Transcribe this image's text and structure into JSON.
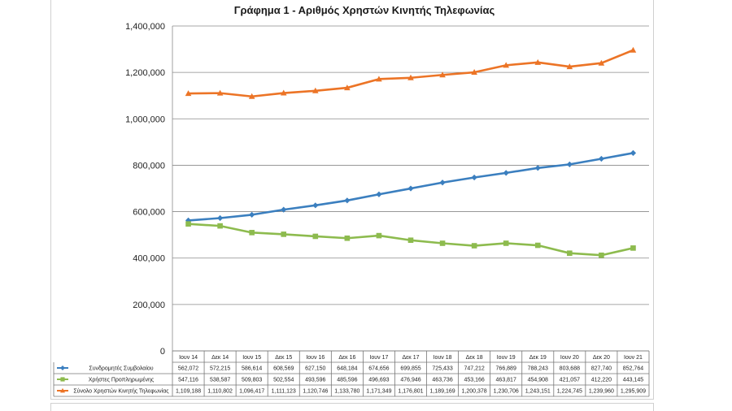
{
  "chart_data": {
    "type": "line",
    "title": "Γράφημα 1 - Αριθμός Χρηστών Κινητής Τηλεφωνίας",
    "categories": [
      "Ιουν 14",
      "Δεκ 14",
      "Ιουν 15",
      "Δεκ 15",
      "Ιουν 16",
      "Δεκ 16",
      "Ιουν 17",
      "Δεκ 17",
      "Ιουν 18",
      "Δεκ 18",
      "Ιουν 19",
      "Δεκ 19",
      "Ιουν 20",
      "Δεκ 20",
      "Ιουν 21"
    ],
    "ylim": [
      0,
      1400000
    ],
    "yticks": [
      "0",
      "200,000",
      "400,000",
      "600,000",
      "800,000",
      "1,000,000",
      "1,200,000",
      "1,400,000"
    ],
    "grid": true,
    "legend": "data-table",
    "series": [
      {
        "name": "Συνδρομητές Συμβολαίου",
        "color": "#3b7fbf",
        "marker": "diamond",
        "values": [
          562072,
          572215,
          586614,
          608569,
          627150,
          648184,
          674656,
          699855,
          725433,
          747212,
          766889,
          788243,
          803688,
          827740,
          852764
        ],
        "labels": [
          "562,072",
          "572,215",
          "586,614",
          "608,569",
          "627,150",
          "648,184",
          "674,656",
          "699,855",
          "725,433",
          "747,212",
          "766,889",
          "788,243",
          "803,688",
          "827,740",
          "852,764"
        ]
      },
      {
        "name": "Χρήστες Προπληρωμένης",
        "color": "#8dbb4e",
        "marker": "square",
        "values": [
          547116,
          538587,
          509803,
          502554,
          493596,
          485596,
          496693,
          476946,
          463736,
          453166,
          463817,
          454908,
          421057,
          412220,
          443145
        ],
        "labels": [
          "547,116",
          "538,587",
          "509,803",
          "502,554",
          "493,596",
          "485,596",
          "496,693",
          "476,946",
          "463,736",
          "453,166",
          "463,817",
          "454,908",
          "421,057",
          "412,220",
          "443,145"
        ]
      },
      {
        "name": "Σύνολο Χρηστών Κινητής Τηλεφωνίας",
        "color": "#ec7426",
        "marker": "triangle",
        "values": [
          1109188,
          1110802,
          1096417,
          1111123,
          1120746,
          1133780,
          1171349,
          1176801,
          1189169,
          1200378,
          1230706,
          1243151,
          1224745,
          1239960,
          1295909
        ],
        "labels": [
          "1,109,188",
          "1,110,802",
          "1,096,417",
          "1,111,123",
          "1,120,746",
          "1,133,780",
          "1,171,349",
          "1,176,801",
          "1,189,169",
          "1,200,378",
          "1,230,706",
          "1,243,151",
          "1,224,745",
          "1,239,960",
          "1,295,909"
        ]
      }
    ]
  }
}
